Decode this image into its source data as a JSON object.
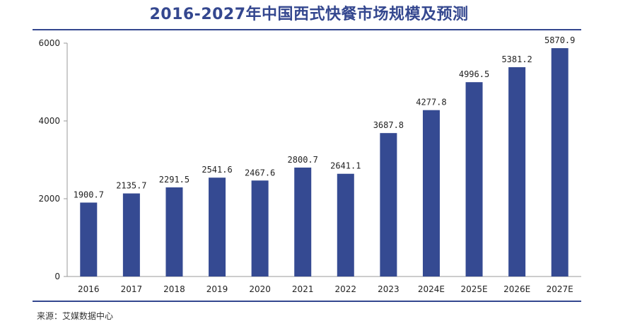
{
  "title": "2016-2027年中国西式快餐市场规模及预测",
  "source": "来源：艾媒数据中心",
  "colors": {
    "bar": "#354a92",
    "title": "#34478f",
    "axis": "#9a9a9a"
  },
  "chart_data": {
    "type": "bar",
    "title": "2016-2027年中国西式快餐市场规模及预测",
    "xlabel": "",
    "ylabel": "",
    "categories": [
      "2016",
      "2017",
      "2018",
      "2019",
      "2020",
      "2021",
      "2022",
      "2023",
      "2024E",
      "2025E",
      "2026E",
      "2027E"
    ],
    "values": [
      1900.7,
      2135.7,
      2291.5,
      2541.6,
      2467.6,
      2800.7,
      2641.1,
      3687.8,
      4277.8,
      4996.5,
      5381.2,
      5870.9
    ],
    "value_labels": [
      "1900.7",
      "2135.7",
      "2291.5",
      "2541.6",
      "2467.6",
      "2800.7",
      "2641.1",
      "3687.8",
      "4277.8",
      "4996.5",
      "5381.2",
      "5870.9"
    ],
    "ylim": [
      0,
      6000
    ],
    "yticks": [
      0,
      2000,
      4000,
      6000
    ],
    "grid": false,
    "legend": "none"
  }
}
